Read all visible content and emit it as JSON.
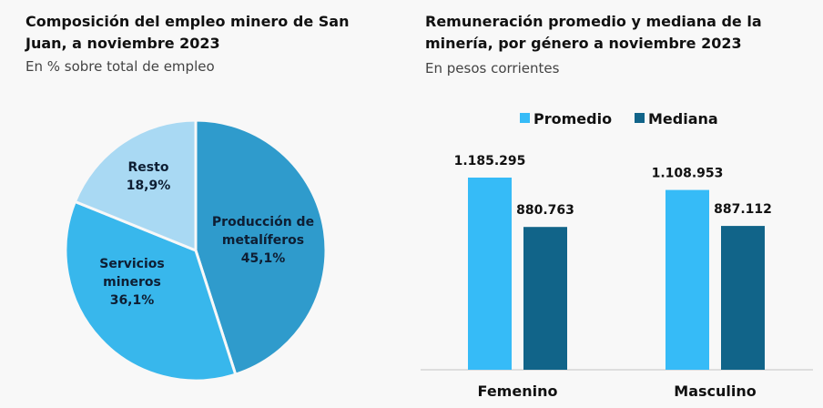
{
  "chart_data": [
    {
      "type": "pie",
      "title": "Composición del empleo minero de San Juan, a noviembre 2023",
      "subtitle": "En % sobre total de empleo",
      "slices": [
        {
          "label_lines": [
            "Producción de",
            "metalíferos"
          ],
          "value": 45.1,
          "value_label": "45,1%",
          "color": "#2f9bcc"
        },
        {
          "label_lines": [
            "Servicios",
            "mineros"
          ],
          "value": 36.1,
          "value_label": "36,1%",
          "color": "#38b7ec"
        },
        {
          "label_lines": [
            "Resto"
          ],
          "value": 18.9,
          "value_label": "18,9%",
          "color": "#a9d9f3"
        }
      ]
    },
    {
      "type": "bar",
      "title": "Remuneración promedio y mediana de la minería, por género a noviembre 2023",
      "subtitle": "En pesos corrientes",
      "categories": [
        "Femenino",
        "Masculino"
      ],
      "series": [
        {
          "name": "Promedio",
          "values": [
            1185295,
            1108953
          ],
          "labels": [
            "1.185.295",
            "1.108.953"
          ],
          "color": "#36bbf7"
        },
        {
          "name": "Mediana",
          "values": [
            880763,
            887112
          ],
          "labels": [
            "880.763",
            "887.112"
          ],
          "color": "#116489"
        }
      ],
      "legend": "top",
      "ylim": [
        0,
        1185295
      ]
    }
  ]
}
